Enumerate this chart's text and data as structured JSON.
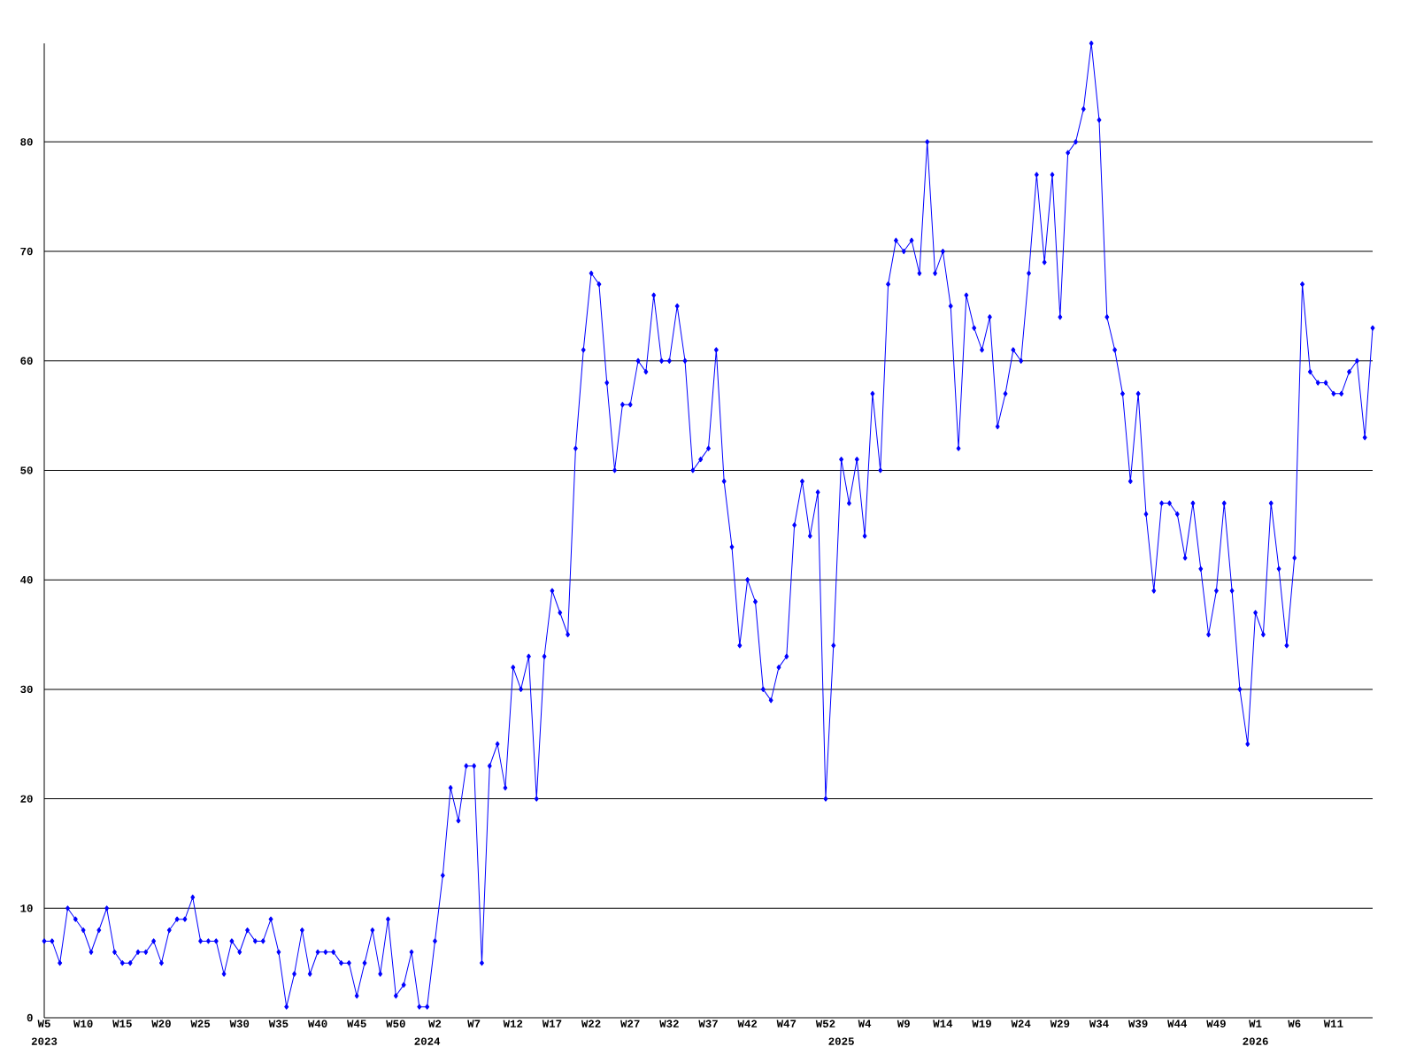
{
  "chart_data": {
    "type": "line",
    "categories": [
      "W5",
      null,
      null,
      null,
      null,
      "W10",
      null,
      null,
      null,
      null,
      "W15",
      null,
      null,
      null,
      null,
      "W20",
      null,
      null,
      null,
      null,
      "W25",
      null,
      null,
      null,
      null,
      "W30",
      null,
      null,
      null,
      null,
      "W35",
      null,
      null,
      null,
      null,
      "W40",
      null,
      null,
      null,
      null,
      "W45",
      null,
      null,
      null,
      null,
      "W50",
      null,
      null,
      null,
      null,
      "W2",
      null,
      null,
      null,
      null,
      "W7",
      null,
      null,
      null,
      null,
      "W12",
      null,
      null,
      null,
      null,
      "W17",
      null,
      null,
      null,
      null,
      "W22",
      null,
      null,
      null,
      null,
      "W27",
      null,
      null,
      null,
      null,
      "W32",
      null,
      null,
      null,
      null,
      "W37",
      null,
      null,
      null,
      null,
      "W42",
      null,
      null,
      null,
      null,
      "W47",
      null,
      null,
      null,
      null,
      "W52",
      null,
      null,
      null,
      null,
      "W4",
      null,
      null,
      null,
      null,
      "W9",
      null,
      null,
      null,
      null,
      "W14",
      null,
      null,
      null,
      null,
      "W19",
      null,
      null,
      null,
      null,
      "W24",
      null,
      null,
      null,
      null,
      "W29",
      null,
      null,
      null,
      null,
      "W34",
      null,
      null,
      null,
      null,
      "W39",
      null,
      null,
      null,
      null,
      "W44",
      null,
      null,
      null,
      null,
      "W49",
      null,
      null,
      null,
      null,
      "W1",
      null,
      null,
      null,
      null,
      "W6",
      null,
      null,
      null,
      null,
      "W11",
      null,
      null,
      null,
      null,
      null
    ],
    "series": [
      {
        "color": "#0000ff",
        "values": [
          7,
          7,
          5,
          10,
          9,
          8,
          6,
          8,
          10,
          6,
          5,
          5,
          6,
          6,
          7,
          5,
          8,
          9,
          9,
          11,
          7,
          7,
          7,
          4,
          7,
          6,
          8,
          7,
          7,
          9,
          6,
          1,
          4,
          8,
          4,
          6,
          6,
          6,
          5,
          5,
          2,
          5,
          8,
          4,
          9,
          2,
          3,
          6,
          1,
          1,
          7,
          13,
          21,
          18,
          23,
          23,
          5,
          23,
          25,
          21,
          32,
          30,
          33,
          20,
          33,
          39,
          37,
          35,
          52,
          61,
          68,
          67,
          58,
          50,
          56,
          56,
          60,
          59,
          66,
          60,
          60,
          65,
          60,
          50,
          51,
          52,
          61,
          49,
          43,
          34,
          40,
          38,
          30,
          29,
          32,
          33,
          45,
          49,
          44,
          48,
          20,
          34,
          51,
          47,
          51,
          44,
          57,
          50,
          67,
          71,
          70,
          71,
          68,
          80,
          68,
          70,
          65,
          52,
          66,
          63,
          61,
          64,
          54,
          57,
          61,
          60,
          68,
          77,
          69,
          77,
          64,
          79,
          80,
          83,
          89,
          82,
          64,
          61,
          57,
          49,
          57,
          46,
          39,
          47,
          47,
          46,
          42,
          47,
          41,
          35,
          39,
          47,
          39,
          30,
          25,
          37,
          35,
          47,
          41,
          34,
          42,
          67,
          59,
          58,
          58,
          57,
          57,
          59,
          60,
          53,
          63
        ]
      }
    ],
    "annotations": [
      "2023",
      "2024",
      "2025",
      "2026"
    ],
    "ylim": [
      0,
      89
    ],
    "yticks": [
      0,
      10,
      20,
      30,
      40,
      50,
      60,
      70,
      80
    ],
    "grid": "y",
    "marker": "diamond"
  }
}
